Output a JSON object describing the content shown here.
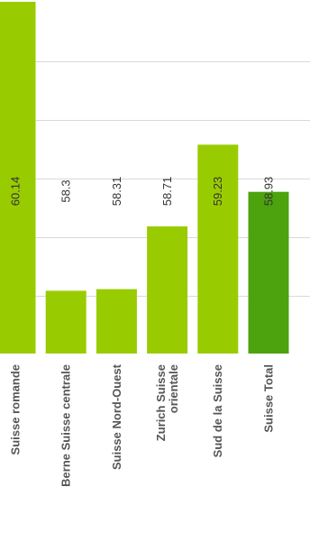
{
  "chart_data": {
    "type": "bar",
    "orientation": "vertical-rotated-labels",
    "categories": [
      [
        "Suisse romande"
      ],
      [
        "Berne Suisse centrale"
      ],
      [
        "Suisse Nord-Ouest"
      ],
      [
        "Zurich Suisse",
        "orientale"
      ],
      [
        "Sud de la Suisse"
      ],
      [
        "Suisse Total"
      ]
    ],
    "values": [
      60.14,
      58.3,
      58.31,
      58.71,
      59.23,
      58.93
    ],
    "value_labels": [
      "60.14",
      "58.3",
      "58.31",
      "58.71",
      "59.23",
      "58.93"
    ],
    "ylim": [
      0,
      60.14
    ],
    "grid": true,
    "colors": {
      "bar": "#99cc00",
      "total_bar": "#4ca30d",
      "grid": "#d9d9d9"
    },
    "highlight_index": 5
  }
}
